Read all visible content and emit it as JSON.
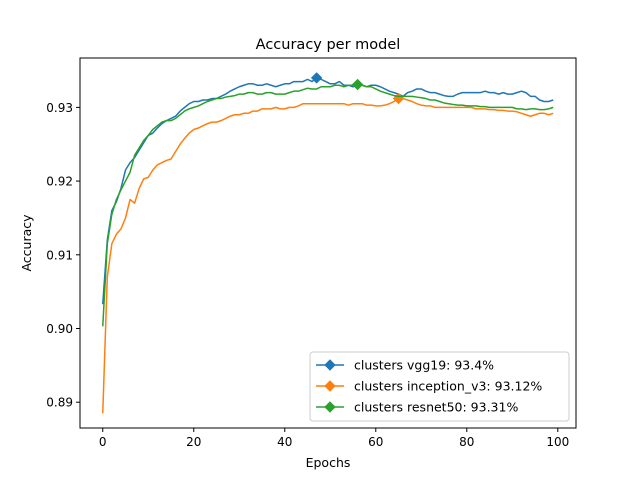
{
  "chart_data": {
    "type": "line",
    "title": "Accuracy per model",
    "xlabel": "Epochs",
    "ylabel": "Accuracy",
    "xlim": [
      -5,
      104
    ],
    "ylim": [
      0.8865,
      0.9367
    ],
    "xticks": [
      0,
      20,
      40,
      60,
      80,
      100
    ],
    "xtick_labels": [
      "0",
      "20",
      "40",
      "60",
      "80",
      "100"
    ],
    "yticks": [
      0.89,
      0.9,
      0.91,
      0.92,
      0.93
    ],
    "ytick_labels": [
      "0.89",
      "0.90",
      "0.91",
      "0.92",
      "0.93"
    ],
    "grid": false,
    "legend_position": "lower-right",
    "series": [
      {
        "name": "clusters vgg19: 93.4%",
        "color": "#1f77b4",
        "x_start": 0,
        "values": [
          0.9033,
          0.912,
          0.916,
          0.9172,
          0.919,
          0.9215,
          0.9225,
          0.9232,
          0.9242,
          0.9252,
          0.9262,
          0.9265,
          0.9272,
          0.9278,
          0.9282,
          0.9285,
          0.9288,
          0.9295,
          0.93,
          0.9305,
          0.9308,
          0.9308,
          0.931,
          0.931,
          0.9312,
          0.9312,
          0.9315,
          0.9318,
          0.9322,
          0.9325,
          0.9328,
          0.933,
          0.9332,
          0.9332,
          0.933,
          0.933,
          0.9332,
          0.933,
          0.9328,
          0.933,
          0.9332,
          0.9332,
          0.9335,
          0.9335,
          0.9335,
          0.9338,
          0.9335,
          0.934,
          0.9338,
          0.9335,
          0.9332,
          0.9332,
          0.9335,
          0.933,
          0.933,
          0.9328,
          0.933,
          0.933,
          0.9328,
          0.933,
          0.933,
          0.9328,
          0.9325,
          0.9322,
          0.932,
          0.9318,
          0.9315,
          0.932,
          0.9322,
          0.9325,
          0.9325,
          0.9322,
          0.932,
          0.932,
          0.9318,
          0.9316,
          0.9315,
          0.9315,
          0.9318,
          0.932,
          0.932,
          0.932,
          0.932,
          0.932,
          0.9322,
          0.932,
          0.932,
          0.9318,
          0.932,
          0.9318,
          0.9318,
          0.932,
          0.9322,
          0.932,
          0.9315,
          0.9315,
          0.931,
          0.9308,
          0.9308,
          0.931
        ],
        "marker": {
          "x": 47,
          "y": 0.934
        }
      },
      {
        "name": "clusters inception_v3: 93.12%",
        "color": "#ff7f0e",
        "x_start": 0,
        "values": [
          0.8885,
          0.907,
          0.9115,
          0.9128,
          0.9135,
          0.915,
          0.9175,
          0.917,
          0.919,
          0.9203,
          0.9205,
          0.9215,
          0.9222,
          0.9225,
          0.9228,
          0.923,
          0.924,
          0.925,
          0.9258,
          0.9265,
          0.927,
          0.9272,
          0.9275,
          0.9278,
          0.928,
          0.928,
          0.9282,
          0.9285,
          0.9288,
          0.929,
          0.929,
          0.9292,
          0.9292,
          0.9295,
          0.9295,
          0.9298,
          0.9298,
          0.9298,
          0.93,
          0.9298,
          0.9298,
          0.93,
          0.93,
          0.9302,
          0.9305,
          0.9305,
          0.9305,
          0.9305,
          0.9305,
          0.9305,
          0.9305,
          0.9305,
          0.9305,
          0.9305,
          0.9303,
          0.9305,
          0.9305,
          0.9305,
          0.9303,
          0.9303,
          0.9302,
          0.9302,
          0.9303,
          0.9305,
          0.9308,
          0.9312,
          0.9312,
          0.931,
          0.9308,
          0.9305,
          0.9303,
          0.9302,
          0.9302,
          0.93,
          0.93,
          0.93,
          0.93,
          0.93,
          0.93,
          0.93,
          0.93,
          0.93,
          0.9298,
          0.9298,
          0.9298,
          0.9297,
          0.9297,
          0.9296,
          0.9296,
          0.9295,
          0.9295,
          0.9294,
          0.9292,
          0.929,
          0.9288,
          0.929,
          0.9292,
          0.9292,
          0.929,
          0.9292
        ],
        "marker": {
          "x": 65,
          "y": 0.9312
        }
      },
      {
        "name": "clusters resnet50: 93.31%",
        "color": "#2ca02c",
        "x_start": 0,
        "values": [
          0.9003,
          0.9115,
          0.9155,
          0.9175,
          0.9188,
          0.92,
          0.9212,
          0.9235,
          0.9245,
          0.9255,
          0.9262,
          0.927,
          0.9275,
          0.928,
          0.9282,
          0.9282,
          0.9285,
          0.929,
          0.9295,
          0.9298,
          0.93,
          0.9302,
          0.9305,
          0.9308,
          0.931,
          0.9312,
          0.9312,
          0.9314,
          0.9315,
          0.9316,
          0.9318,
          0.9318,
          0.932,
          0.932,
          0.9318,
          0.9318,
          0.932,
          0.932,
          0.9318,
          0.9318,
          0.9318,
          0.932,
          0.9322,
          0.9322,
          0.9324,
          0.9326,
          0.9325,
          0.9325,
          0.9328,
          0.9328,
          0.9328,
          0.933,
          0.933,
          0.9328,
          0.933,
          0.933,
          0.9331,
          0.933,
          0.9328,
          0.9328,
          0.9325,
          0.9322,
          0.932,
          0.9318,
          0.9316,
          0.9315,
          0.9315,
          0.9315,
          0.9315,
          0.9314,
          0.9313,
          0.9312,
          0.931,
          0.931,
          0.9308,
          0.9306,
          0.9305,
          0.9304,
          0.9303,
          0.9303,
          0.9302,
          0.9302,
          0.9302,
          0.9301,
          0.9301,
          0.93,
          0.93,
          0.93,
          0.93,
          0.93,
          0.93,
          0.9298,
          0.9298,
          0.9297,
          0.9298,
          0.9298,
          0.9297,
          0.9297,
          0.9298,
          0.93
        ],
        "marker": {
          "x": 56,
          "y": 0.9331
        }
      }
    ]
  }
}
